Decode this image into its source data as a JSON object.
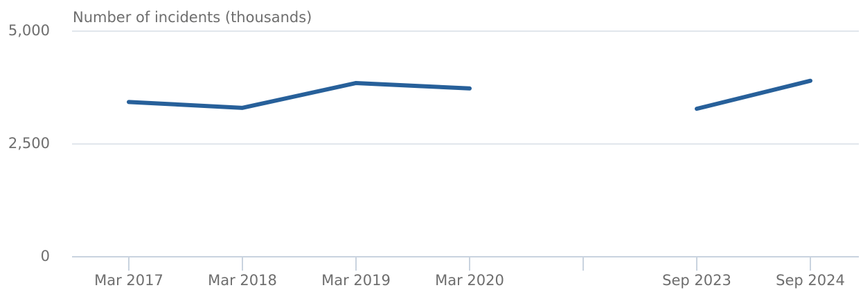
{
  "chart_data": {
    "type": "line",
    "y_label": "Number of incidents (thousands)",
    "categories": [
      "Mar 2017",
      "Mar 2018",
      "Mar 2019",
      "Mar 2020",
      null,
      "Sep 2023",
      "Sep 2024"
    ],
    "series": [
      {
        "name": "Number of incidents",
        "color": "#27609a",
        "values": [
          3430,
          3300,
          3850,
          3730,
          null,
          3280,
          3900
        ]
      }
    ],
    "ylim": [
      0,
      5000
    ],
    "yticks": [
      0,
      {
        "value": 2500,
        "label": "2,500"
      },
      {
        "value": 5000,
        "label": "5,000"
      }
    ],
    "grid": true
  }
}
